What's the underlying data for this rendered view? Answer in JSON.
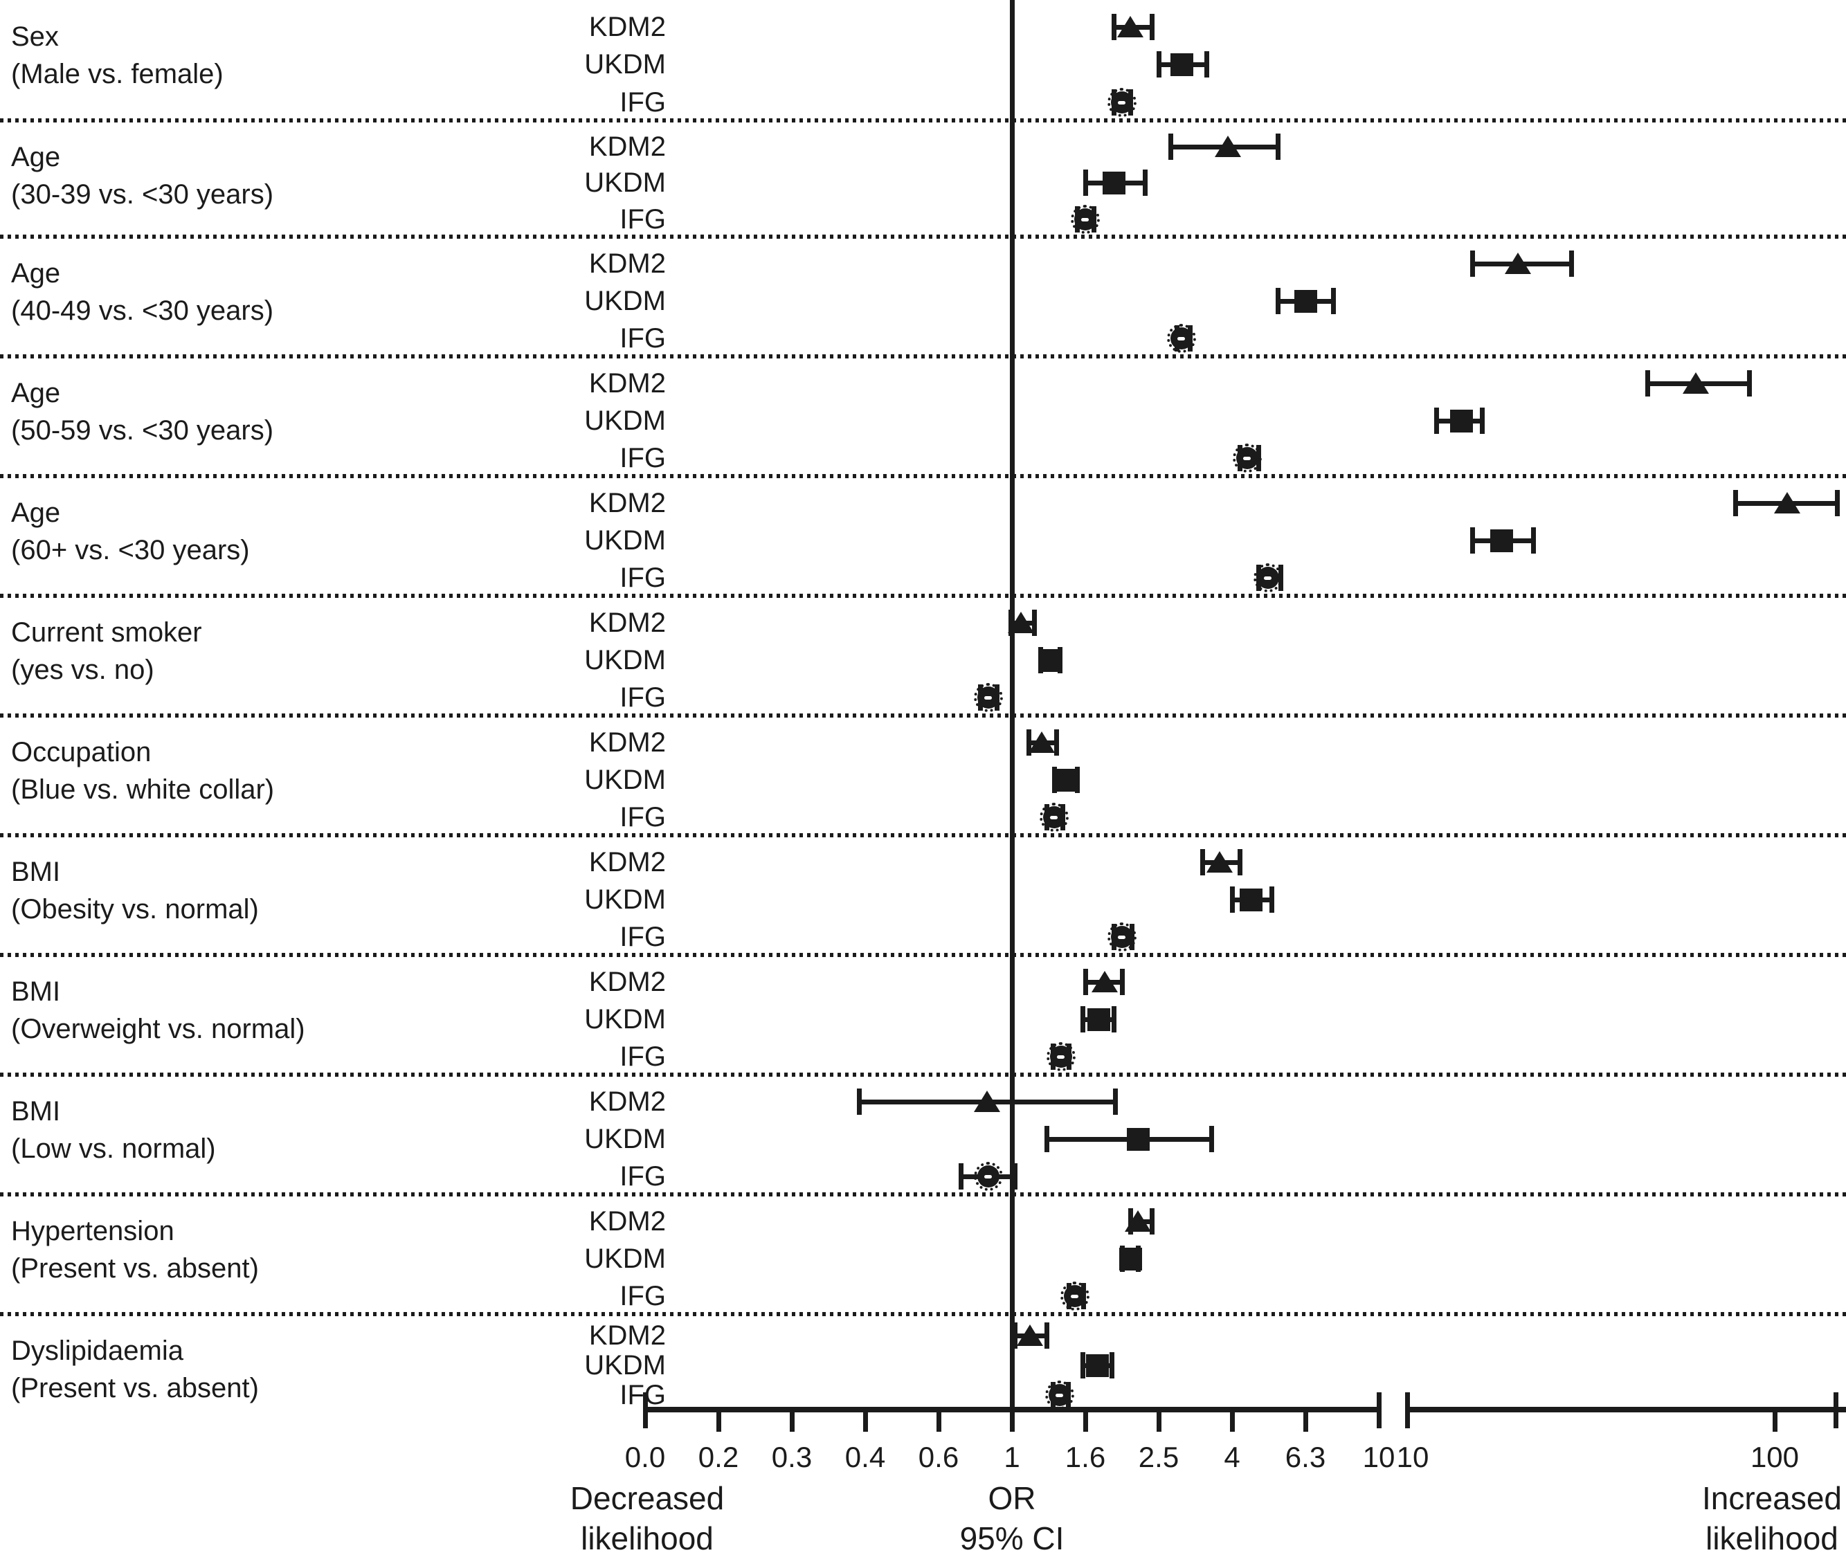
{
  "figure": {
    "footer": {
      "left_line1": "Decreased",
      "left_line2": "likelihood",
      "center_line1": "OR",
      "center_line2": "95% CI",
      "right_line1": "Increased",
      "right_line2": "likelihood"
    },
    "colors": {
      "ink": "#1b1b1b",
      "background": "#ffffff"
    }
  },
  "chart_data": {
    "type": "scatter",
    "subtype": "forest-plot",
    "title": "",
    "xlabel": "OR 95% CI",
    "legend_position": "none",
    "grid": "dotted-row-dividers",
    "x_axis": {
      "scale": "log-with-axis-break",
      "reference_line": 1,
      "left_segment": {
        "tick_labels": [
          "0.0",
          "0.2",
          "0.3",
          "0.4",
          "0.6",
          "1",
          "1.6",
          "2.5",
          "4",
          "6.3",
          "10"
        ],
        "range": [
          0,
          10
        ]
      },
      "right_segment": {
        "tick_labels": [
          "10",
          "100"
        ],
        "range": [
          10,
          160
        ]
      }
    },
    "series_names": [
      "KDM2",
      "UKDM",
      "IFG"
    ],
    "marker_shapes": {
      "KDM2": "filled-triangle",
      "UKDM": "filled-square",
      "IFG": "filled-circle"
    },
    "groups": [
      {
        "label": "Sex",
        "sublabel": "(Male vs. female)",
        "points": [
          {
            "series": "KDM2",
            "or": 2.1,
            "lo": 1.9,
            "hi": 2.4,
            "segment": "left"
          },
          {
            "series": "UKDM",
            "or": 2.9,
            "lo": 2.5,
            "hi": 3.4,
            "segment": "left"
          },
          {
            "series": "IFG",
            "or": 2.0,
            "lo": 1.9,
            "hi": 2.1,
            "segment": "left"
          }
        ]
      },
      {
        "label": "Age",
        "sublabel": "(30-39 vs. <30 years)",
        "points": [
          {
            "series": "KDM2",
            "or": 3.9,
            "lo": 2.7,
            "hi": 5.3,
            "segment": "left"
          },
          {
            "series": "UKDM",
            "or": 1.9,
            "lo": 1.6,
            "hi": 2.3,
            "segment": "left"
          },
          {
            "series": "IFG",
            "or": 1.6,
            "lo": 1.52,
            "hi": 1.68,
            "segment": "left"
          }
        ]
      },
      {
        "label": "Age",
        "sublabel": "(40-49 vs. <30 years)",
        "points": [
          {
            "series": "KDM2",
            "or": 20,
            "lo": 15,
            "hi": 28,
            "segment": "right"
          },
          {
            "series": "UKDM",
            "or": 6.3,
            "lo": 5.3,
            "hi": 7.5,
            "segment": "left"
          },
          {
            "series": "IFG",
            "or": 2.9,
            "lo": 2.8,
            "hi": 3.05,
            "segment": "left"
          }
        ]
      },
      {
        "label": "Age",
        "sublabel": "(50-59 vs. <30 years)",
        "points": [
          {
            "series": "KDM2",
            "or": 61,
            "lo": 45,
            "hi": 85,
            "segment": "right"
          },
          {
            "series": "UKDM",
            "or": 14,
            "lo": 12,
            "hi": 16,
            "segment": "right"
          },
          {
            "series": "IFG",
            "or": 4.4,
            "lo": 4.2,
            "hi": 4.7,
            "segment": "left"
          }
        ]
      },
      {
        "label": "Age",
        "sublabel": "(60+ vs. <30 years)",
        "points": [
          {
            "series": "KDM2",
            "or": 108,
            "lo": 78,
            "hi": 148,
            "segment": "right"
          },
          {
            "series": "UKDM",
            "or": 18,
            "lo": 15,
            "hi": 22,
            "segment": "right"
          },
          {
            "series": "IFG",
            "or": 5.0,
            "lo": 4.7,
            "hi": 5.4,
            "segment": "left"
          }
        ]
      },
      {
        "label": "Current smoker",
        "sublabel": "(yes vs. no)",
        "points": [
          {
            "series": "KDM2",
            "or": 1.06,
            "lo": 0.99,
            "hi": 1.15,
            "segment": "left"
          },
          {
            "series": "UKDM",
            "or": 1.28,
            "lo": 1.2,
            "hi": 1.36,
            "segment": "left"
          },
          {
            "series": "IFG",
            "or": 0.85,
            "lo": 0.8,
            "hi": 0.9,
            "segment": "left"
          }
        ]
      },
      {
        "label": "Occupation",
        "sublabel": "(Blue vs. white collar)",
        "points": [
          {
            "series": "KDM2",
            "or": 1.21,
            "lo": 1.11,
            "hi": 1.33,
            "segment": "left"
          },
          {
            "series": "UKDM",
            "or": 1.41,
            "lo": 1.31,
            "hi": 1.52,
            "segment": "left"
          },
          {
            "series": "IFG",
            "or": 1.31,
            "lo": 1.25,
            "hi": 1.38,
            "segment": "left"
          }
        ]
      },
      {
        "label": "BMI",
        "sublabel": "(Obesity vs. normal)",
        "points": [
          {
            "series": "KDM2",
            "or": 3.7,
            "lo": 3.3,
            "hi": 4.2,
            "segment": "left"
          },
          {
            "series": "UKDM",
            "or": 4.5,
            "lo": 4.0,
            "hi": 5.1,
            "segment": "left"
          },
          {
            "series": "IFG",
            "or": 2.0,
            "lo": 1.9,
            "hi": 2.12,
            "segment": "left"
          }
        ]
      },
      {
        "label": "BMI",
        "sublabel": "(Overweight vs. normal)",
        "points": [
          {
            "series": "KDM2",
            "or": 1.8,
            "lo": 1.6,
            "hi": 2.0,
            "segment": "left"
          },
          {
            "series": "UKDM",
            "or": 1.73,
            "lo": 1.57,
            "hi": 1.9,
            "segment": "left"
          },
          {
            "series": "IFG",
            "or": 1.37,
            "lo": 1.3,
            "hi": 1.44,
            "segment": "left"
          }
        ]
      },
      {
        "label": "BMI",
        "sublabel": "(Low vs. normal)",
        "points": [
          {
            "series": "KDM2",
            "or": 0.84,
            "lo": 0.39,
            "hi": 1.92,
            "segment": "left"
          },
          {
            "series": "UKDM",
            "or": 2.2,
            "lo": 1.25,
            "hi": 3.5,
            "segment": "left"
          },
          {
            "series": "IFG",
            "or": 0.85,
            "lo": 0.7,
            "hi": 1.02,
            "segment": "left"
          }
        ]
      },
      {
        "label": "Hypertension",
        "sublabel": "(Present vs. absent)",
        "points": [
          {
            "series": "KDM2",
            "or": 2.2,
            "lo": 2.1,
            "hi": 2.4,
            "segment": "left"
          },
          {
            "series": "UKDM",
            "or": 2.1,
            "lo": 2.0,
            "hi": 2.2,
            "segment": "left"
          },
          {
            "series": "IFG",
            "or": 1.5,
            "lo": 1.44,
            "hi": 1.58,
            "segment": "left"
          }
        ]
      },
      {
        "label": "Dyslipidaemia",
        "sublabel": "(Present vs. absent)",
        "points": [
          {
            "series": "KDM2",
            "or": 1.12,
            "lo": 1.02,
            "hi": 1.25,
            "segment": "left"
          },
          {
            "series": "UKDM",
            "or": 1.72,
            "lo": 1.57,
            "hi": 1.88,
            "segment": "left"
          },
          {
            "series": "IFG",
            "or": 1.36,
            "lo": 1.3,
            "hi": 1.43,
            "segment": "left"
          }
        ]
      }
    ]
  }
}
